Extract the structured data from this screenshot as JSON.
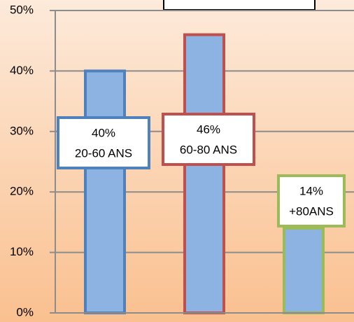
{
  "chart_data": {
    "type": "bar",
    "categories": [
      "20-60 ANS",
      "60-80 ANS",
      "+80ANS"
    ],
    "values": [
      40,
      46,
      14
    ],
    "value_labels": [
      "40%",
      "46%",
      "14%"
    ],
    "color": "#8db3e2",
    "border_colors": [
      "#4f81bd",
      "#c0504d",
      "#9bbb59"
    ],
    "ylim": [
      0,
      50
    ],
    "yticks": [
      {
        "value": 0,
        "label": "0%"
      },
      {
        "value": 10,
        "label": "10%"
      },
      {
        "value": 20,
        "label": "20%"
      },
      {
        "value": 30,
        "label": "30%"
      },
      {
        "value": 40,
        "label": "40%"
      },
      {
        "value": 50,
        "label": "50%"
      }
    ],
    "grid": true
  }
}
